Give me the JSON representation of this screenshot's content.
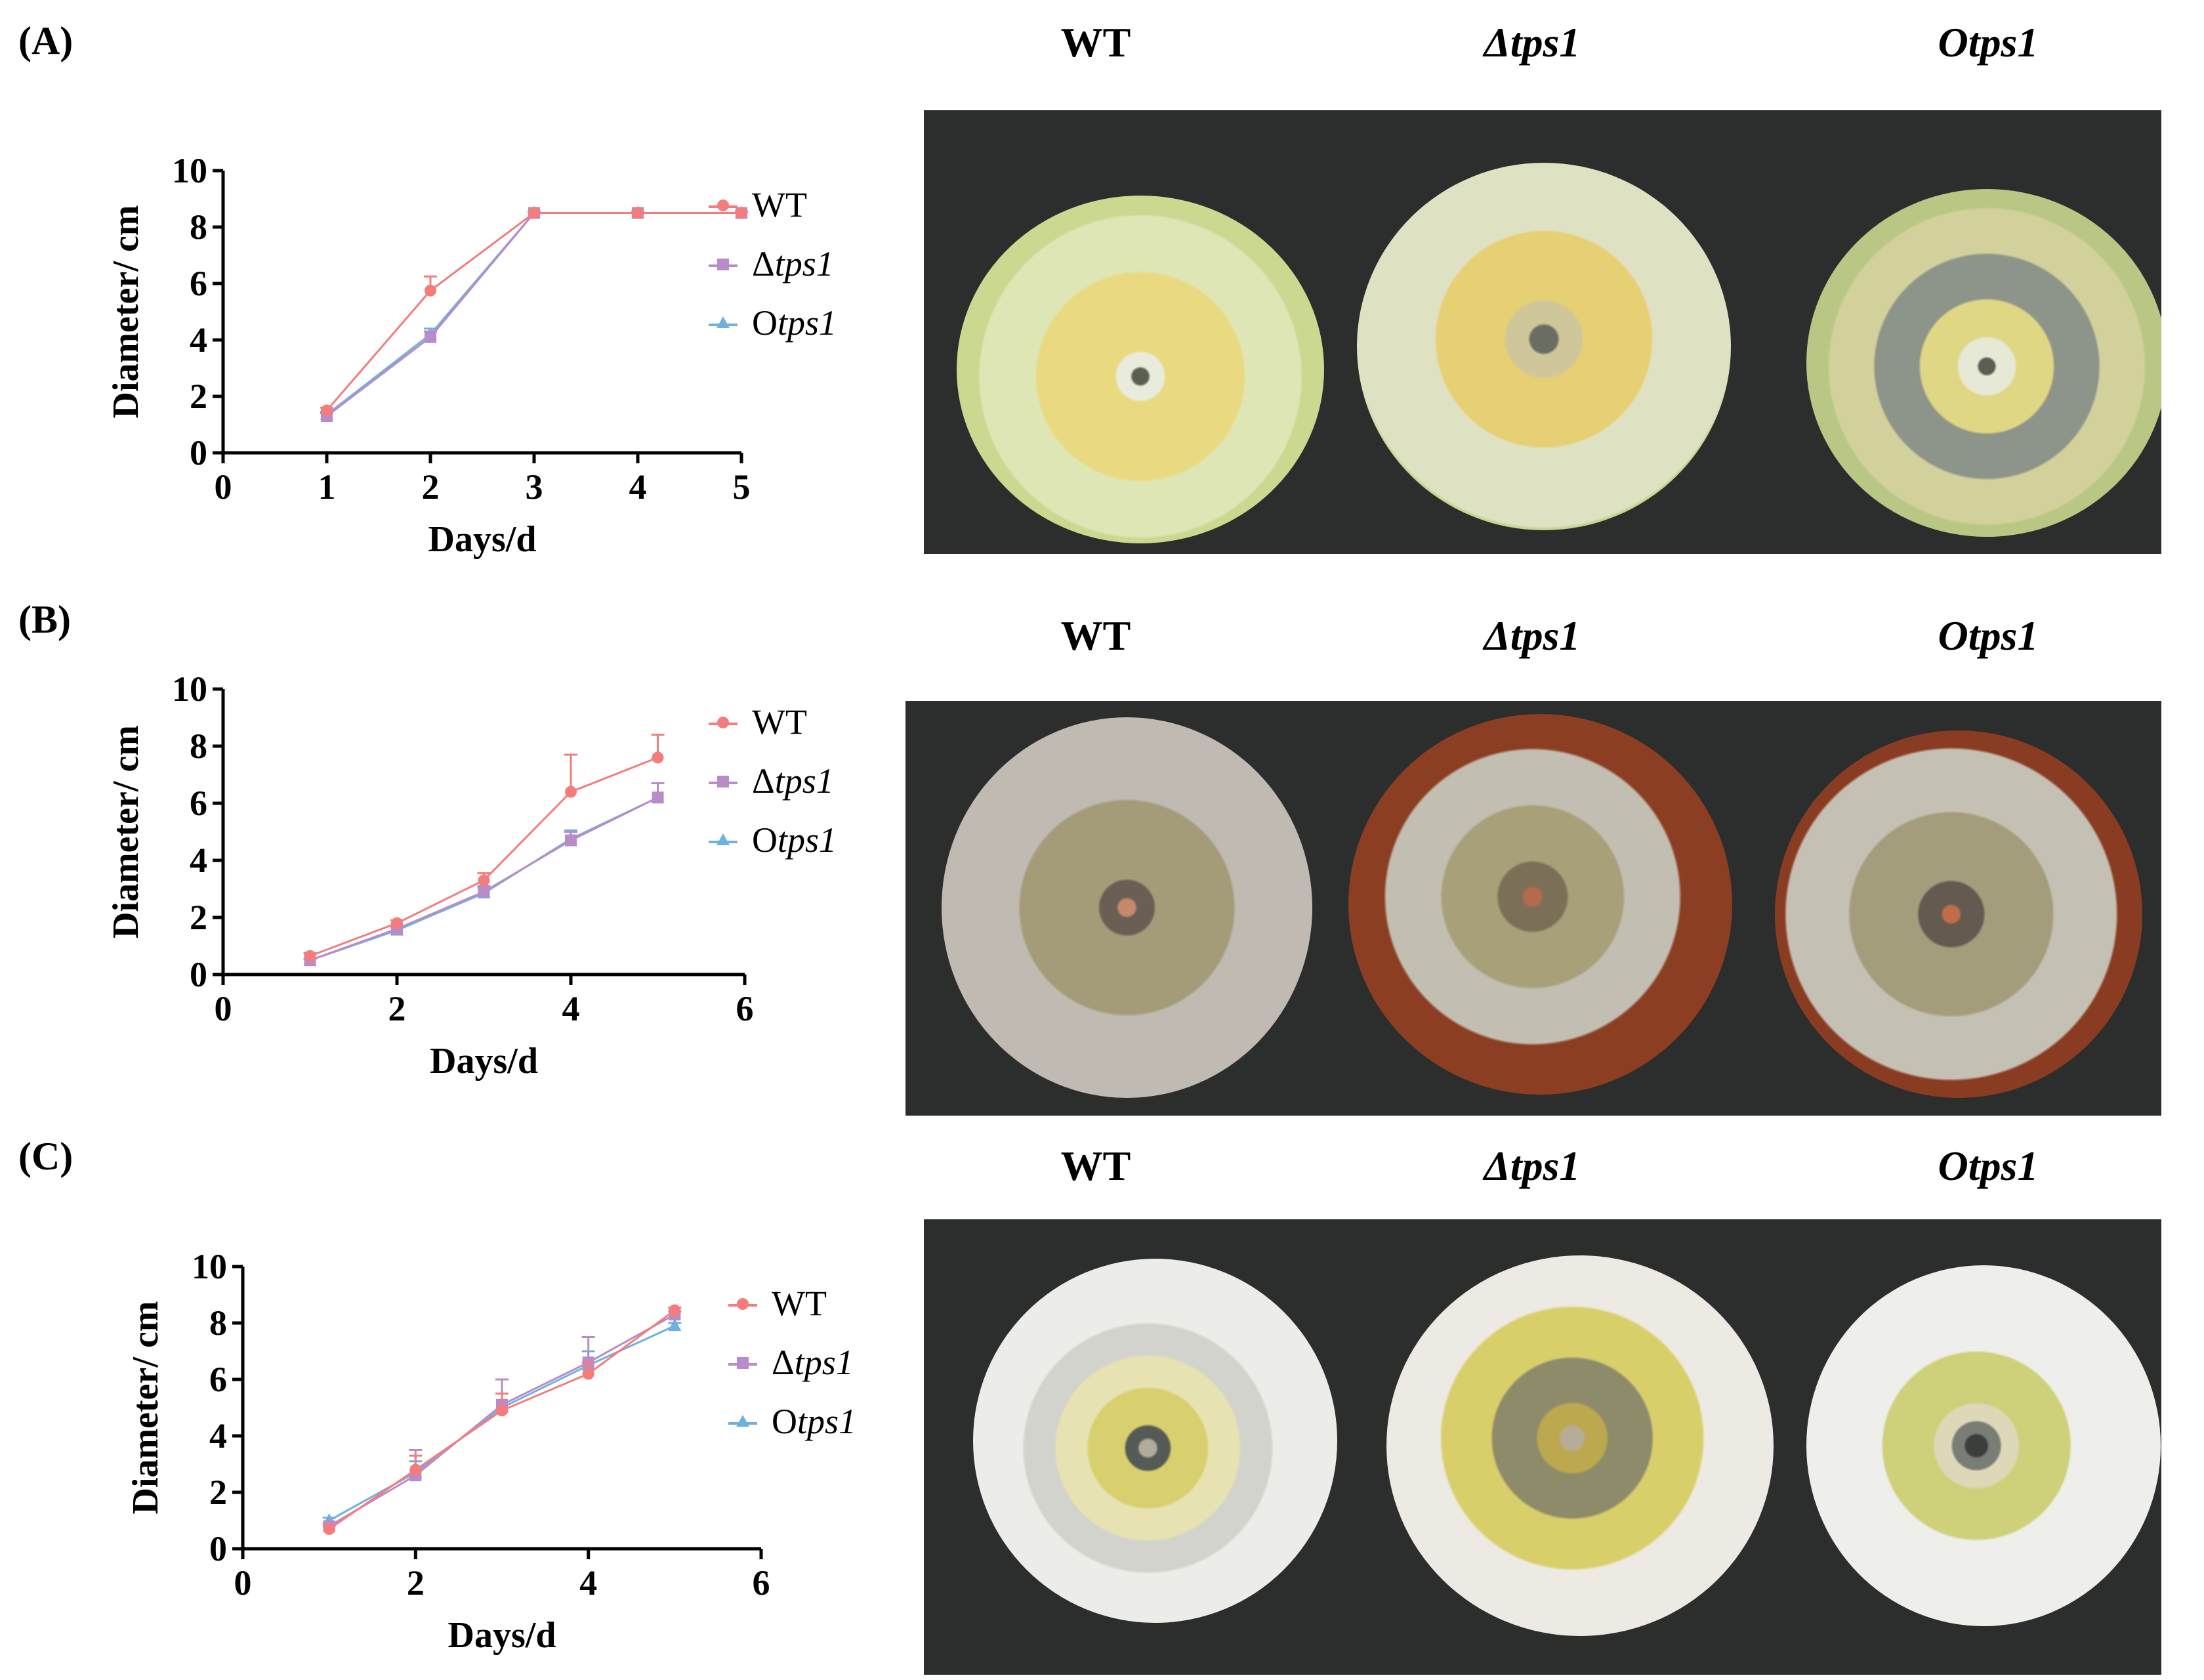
{
  "figure": {
    "panels": [
      {
        "letter": "(A)",
        "strains": [
          "WT",
          "Δtps1",
          "Otps1"
        ]
      },
      {
        "letter": "(B)",
        "strains": [
          "WT",
          "Δtps1",
          "Otps1"
        ]
      },
      {
        "letter": "(C)",
        "strains": [
          "WT",
          "Δtps1",
          "Otps1"
        ]
      }
    ],
    "legend": [
      {
        "prefix": "WT",
        "italic": "",
        "color": "#f47c7c",
        "marker": "circle"
      },
      {
        "prefix": "Δ",
        "italic": "tps1",
        "color": "#b88cc8",
        "marker": "square"
      },
      {
        "prefix": "O",
        "italic": "tps1",
        "color": "#6fb1dd",
        "marker": "triangle"
      }
    ]
  },
  "chart_data": [
    {
      "type": "line",
      "xlabel": "Days/d",
      "ylabel": "Diameter/ cm",
      "xlim": [
        0,
        5
      ],
      "ylim": [
        0,
        10
      ],
      "xticks": [
        0,
        1,
        2,
        3,
        4,
        5
      ],
      "yticks": [
        0,
        2,
        4,
        6,
        8,
        10
      ],
      "x": [
        1,
        2,
        3,
        4,
        5
      ],
      "series": [
        {
          "name": "WT",
          "color": "#f47c7c",
          "marker": "circle",
          "values": [
            1.5,
            5.75,
            8.5,
            8.5,
            8.5
          ],
          "err": [
            0.1,
            0.5,
            0.05,
            0.05,
            0.05
          ]
        },
        {
          "name": "Δtps1",
          "color": "#b88cc8",
          "marker": "square",
          "values": [
            1.3,
            4.1,
            8.5,
            8.5,
            8.5
          ],
          "err": [
            0.1,
            0.2,
            0.05,
            0.05,
            0.05
          ]
        },
        {
          "name": "Otps1",
          "color": "#6fb1dd",
          "marker": "triangle",
          "values": [
            1.35,
            4.2,
            8.5,
            8.5,
            8.5
          ],
          "err": [
            0.1,
            0.2,
            0.05,
            0.05,
            0.05
          ]
        }
      ]
    },
    {
      "type": "line",
      "xlabel": "Days/d",
      "ylabel": "Diameter/ cm",
      "xlim": [
        0,
        6
      ],
      "ylim": [
        0,
        10
      ],
      "xticks": [
        0,
        2,
        4,
        6
      ],
      "yticks": [
        0,
        2,
        4,
        6,
        8,
        10
      ],
      "x": [
        1,
        2,
        3,
        4,
        5
      ],
      "series": [
        {
          "name": "WT",
          "color": "#f47c7c",
          "marker": "circle",
          "values": [
            0.65,
            1.8,
            3.3,
            6.4,
            7.6
          ],
          "err": [
            0.1,
            0.1,
            0.25,
            1.3,
            0.8
          ]
        },
        {
          "name": "Δtps1",
          "color": "#b88cc8",
          "marker": "square",
          "values": [
            0.5,
            1.6,
            2.9,
            4.7,
            6.2
          ],
          "err": [
            0.05,
            0.1,
            0.2,
            0.3,
            0.5
          ]
        },
        {
          "name": "Otps1",
          "color": "#6fb1dd",
          "marker": "triangle",
          "values": [
            0.5,
            1.55,
            2.85,
            4.75,
            6.2
          ],
          "err": [
            0.05,
            0.1,
            0.2,
            0.3,
            0.5
          ]
        }
      ]
    },
    {
      "type": "line",
      "xlabel": "Days/d",
      "ylabel": "Diameter/ cm",
      "xlim": [
        0,
        6
      ],
      "ylim": [
        0,
        10
      ],
      "xticks": [
        0,
        2,
        4,
        6
      ],
      "yticks": [
        0,
        2,
        4,
        6,
        8,
        10
      ],
      "x": [
        1,
        2,
        3,
        4,
        5
      ],
      "series": [
        {
          "name": "WT",
          "color": "#f47c7c",
          "marker": "circle",
          "values": [
            0.7,
            2.8,
            4.9,
            6.2,
            8.45
          ],
          "err": [
            0.1,
            0.5,
            0.6,
            0.4,
            0.1
          ]
        },
        {
          "name": "Δtps1",
          "color": "#b88cc8",
          "marker": "square",
          "values": [
            0.8,
            2.6,
            5.1,
            6.6,
            8.3
          ],
          "err": [
            0.1,
            0.9,
            0.9,
            0.9,
            0.1
          ]
        },
        {
          "name": "Otps1",
          "color": "#6fb1dd",
          "marker": "triangle",
          "values": [
            1.0,
            2.7,
            5.0,
            6.5,
            7.9
          ],
          "err": [
            0.1,
            0.4,
            0.5,
            0.5,
            0.1
          ]
        }
      ]
    }
  ]
}
